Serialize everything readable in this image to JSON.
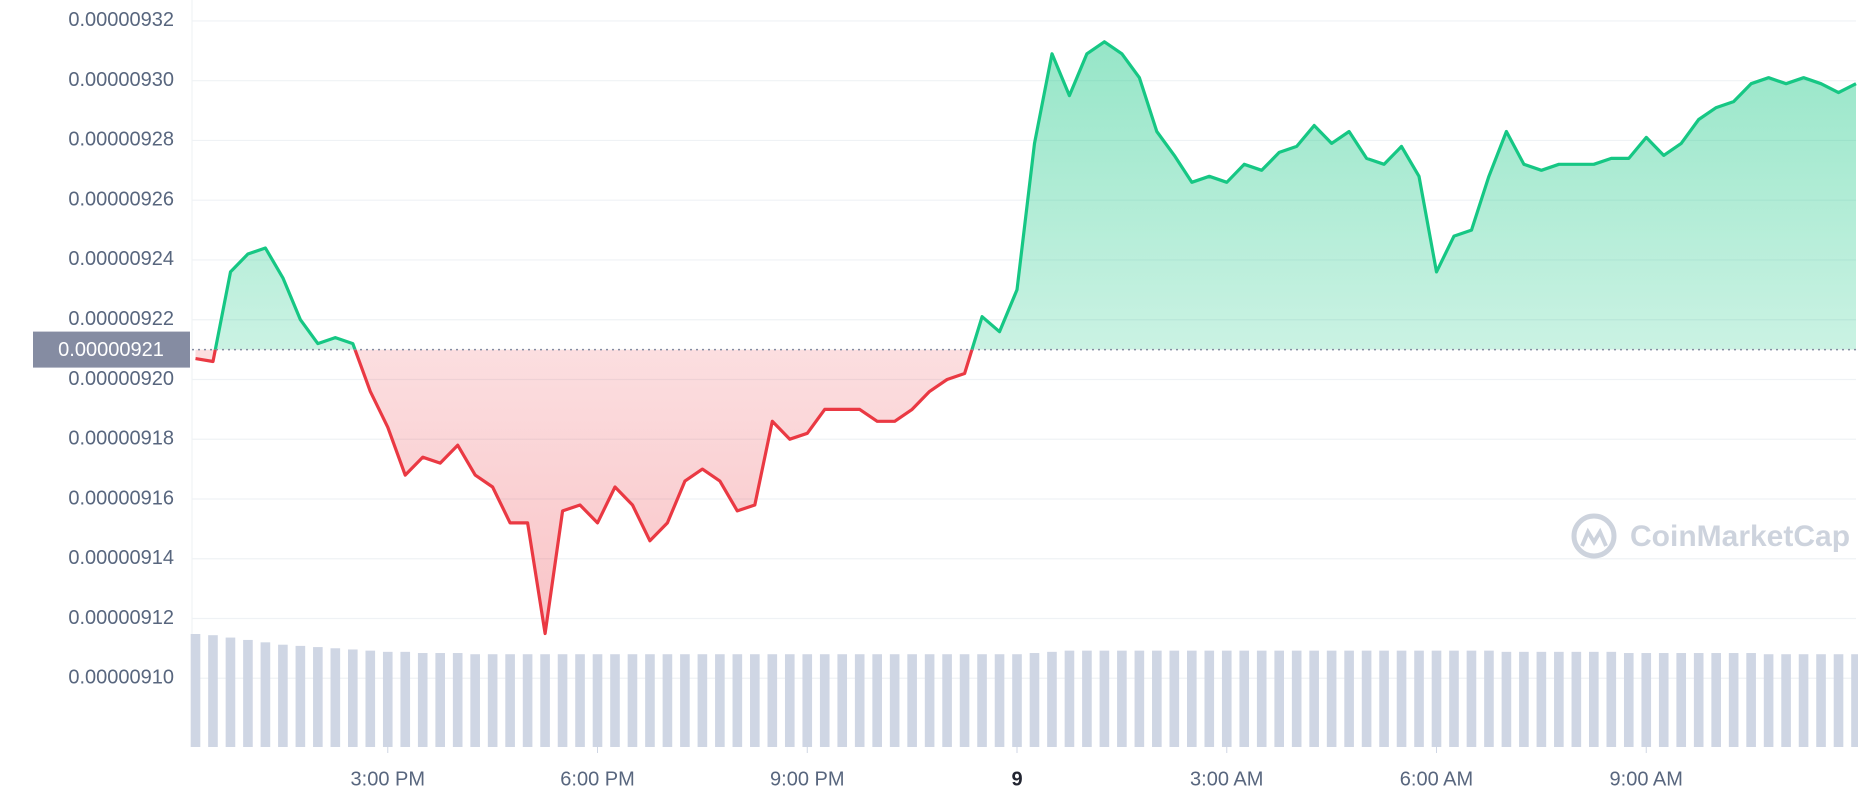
{
  "chart_data": {
    "type": "line",
    "x": [
      12.25,
      12.5,
      12.75,
      13,
      13.25,
      13.5,
      13.75,
      14,
      14.25,
      14.5,
      14.75,
      15,
      15.25,
      15.5,
      15.75,
      16,
      16.25,
      16.5,
      16.75,
      17,
      17.25,
      17.5,
      17.75,
      18,
      18.25,
      18.5,
      18.75,
      19,
      19.25,
      19.5,
      19.75,
      20,
      20.25,
      20.5,
      20.75,
      21,
      21.25,
      21.5,
      21.75,
      22,
      22.25,
      22.5,
      22.75,
      23,
      23.25,
      23.5,
      23.75,
      24,
      24.25,
      24.5,
      24.75,
      25,
      25.25,
      25.5,
      25.75,
      26,
      26.25,
      26.5,
      26.75,
      27,
      27.25,
      27.5,
      27.75,
      28,
      28.25,
      28.5,
      28.75,
      29,
      29.25,
      29.5,
      29.75,
      30,
      30.25,
      30.5,
      30.75,
      31,
      31.25,
      31.5,
      31.75,
      32,
      32.25,
      32.5,
      32.75,
      33,
      33.25,
      33.5,
      33.75,
      34,
      34.25,
      34.5,
      34.75,
      35,
      35.25,
      35.5,
      35.75,
      36
    ],
    "series": [
      {
        "color": "#16c784",
        "negative_color": "#ea3943",
        "values": [
          9.207e-06,
          9.206e-06,
          9.236e-06,
          9.242e-06,
          9.244e-06,
          9.234e-06,
          9.22e-06,
          9.212e-06,
          9.214e-06,
          9.212e-06,
          9.196e-06,
          9.184e-06,
          9.168e-06,
          9.174e-06,
          9.172e-06,
          9.178e-06,
          9.168e-06,
          9.164e-06,
          9.152e-06,
          9.152e-06,
          9.115e-06,
          9.156e-06,
          9.158e-06,
          9.152e-06,
          9.164e-06,
          9.158e-06,
          9.146e-06,
          9.152e-06,
          9.166e-06,
          9.17e-06,
          9.166e-06,
          9.156e-06,
          9.158e-06,
          9.186e-06,
          9.18e-06,
          9.182e-06,
          9.19e-06,
          9.19e-06,
          9.19e-06,
          9.186e-06,
          9.186e-06,
          9.19e-06,
          9.196e-06,
          9.2e-06,
          9.202e-06,
          9.221e-06,
          9.216e-06,
          9.23e-06,
          9.279e-06,
          9.309e-06,
          9.295e-06,
          9.309e-06,
          9.313e-06,
          9.309e-06,
          9.301e-06,
          9.283e-06,
          9.275e-06,
          9.266e-06,
          9.268e-06,
          9.266e-06,
          9.272e-06,
          9.27e-06,
          9.276e-06,
          9.278e-06,
          9.285e-06,
          9.279e-06,
          9.283e-06,
          9.274e-06,
          9.272e-06,
          9.278e-06,
          9.268e-06,
          9.236e-06,
          9.248e-06,
          9.25e-06,
          9.268e-06,
          9.283e-06,
          9.272e-06,
          9.27e-06,
          9.272e-06,
          9.272e-06,
          9.272e-06,
          9.274e-06,
          9.274e-06,
          9.281e-06,
          9.275e-06,
          9.279e-06,
          9.287e-06,
          9.291e-06,
          9.293e-06,
          9.299e-06,
          9.301e-06,
          9.299e-06,
          9.301e-06,
          9.299e-06,
          9.296e-06,
          9.299e-06
        ]
      }
    ],
    "volume": {
      "color": "#cfd6e4",
      "values": [
        95,
        94,
        92,
        90,
        88,
        86,
        85,
        84,
        83,
        82,
        81,
        80,
        80,
        79,
        79,
        79,
        78,
        78,
        78,
        78,
        78,
        78,
        78,
        78,
        78,
        78,
        78,
        78,
        78,
        78,
        78,
        78,
        78,
        78,
        78,
        78,
        78,
        78,
        78,
        78,
        78,
        78,
        78,
        78,
        78,
        78,
        78,
        78,
        79,
        80,
        81,
        81,
        81,
        81,
        81,
        81,
        81,
        81,
        81,
        81,
        81,
        81,
        81,
        81,
        81,
        81,
        81,
        81,
        81,
        81,
        81,
        81,
        81,
        81,
        81,
        80,
        80,
        80,
        80,
        80,
        80,
        80,
        79,
        79,
        79,
        79,
        79,
        79,
        79,
        79,
        78,
        78,
        78,
        78,
        78,
        78
      ]
    },
    "baseline": 9.21e-06,
    "xlim": [
      12.2,
      36
    ],
    "xticks": [
      {
        "value": 15,
        "label": "3:00 PM"
      },
      {
        "value": 18,
        "label": "6:00 PM"
      },
      {
        "value": 21,
        "label": "9:00 PM"
      },
      {
        "value": 24,
        "label": "9"
      },
      {
        "value": 27,
        "label": "3:00 AM"
      },
      {
        "value": 30,
        "label": "6:00 AM"
      },
      {
        "value": 33,
        "label": "9:00 AM"
      }
    ],
    "ylim": [
      9.077e-06,
      9.327e-06
    ],
    "yticks": [
      {
        "value": 9.1e-06,
        "label": "0.00000910"
      },
      9.12e-06,
      9.14e-06,
      9.16e-06,
      9.18e-06,
      {
        "value": 9.2e-06,
        "label": "0.00000920"
      },
      9.22e-06,
      9.24e-06,
      9.26e-06,
      9.28e-06,
      {
        "value": 9.3e-06,
        "label": "0.00000930"
      },
      9.32e-06
    ],
    "grid": true,
    "watermark": "CoinMarketCap"
  }
}
